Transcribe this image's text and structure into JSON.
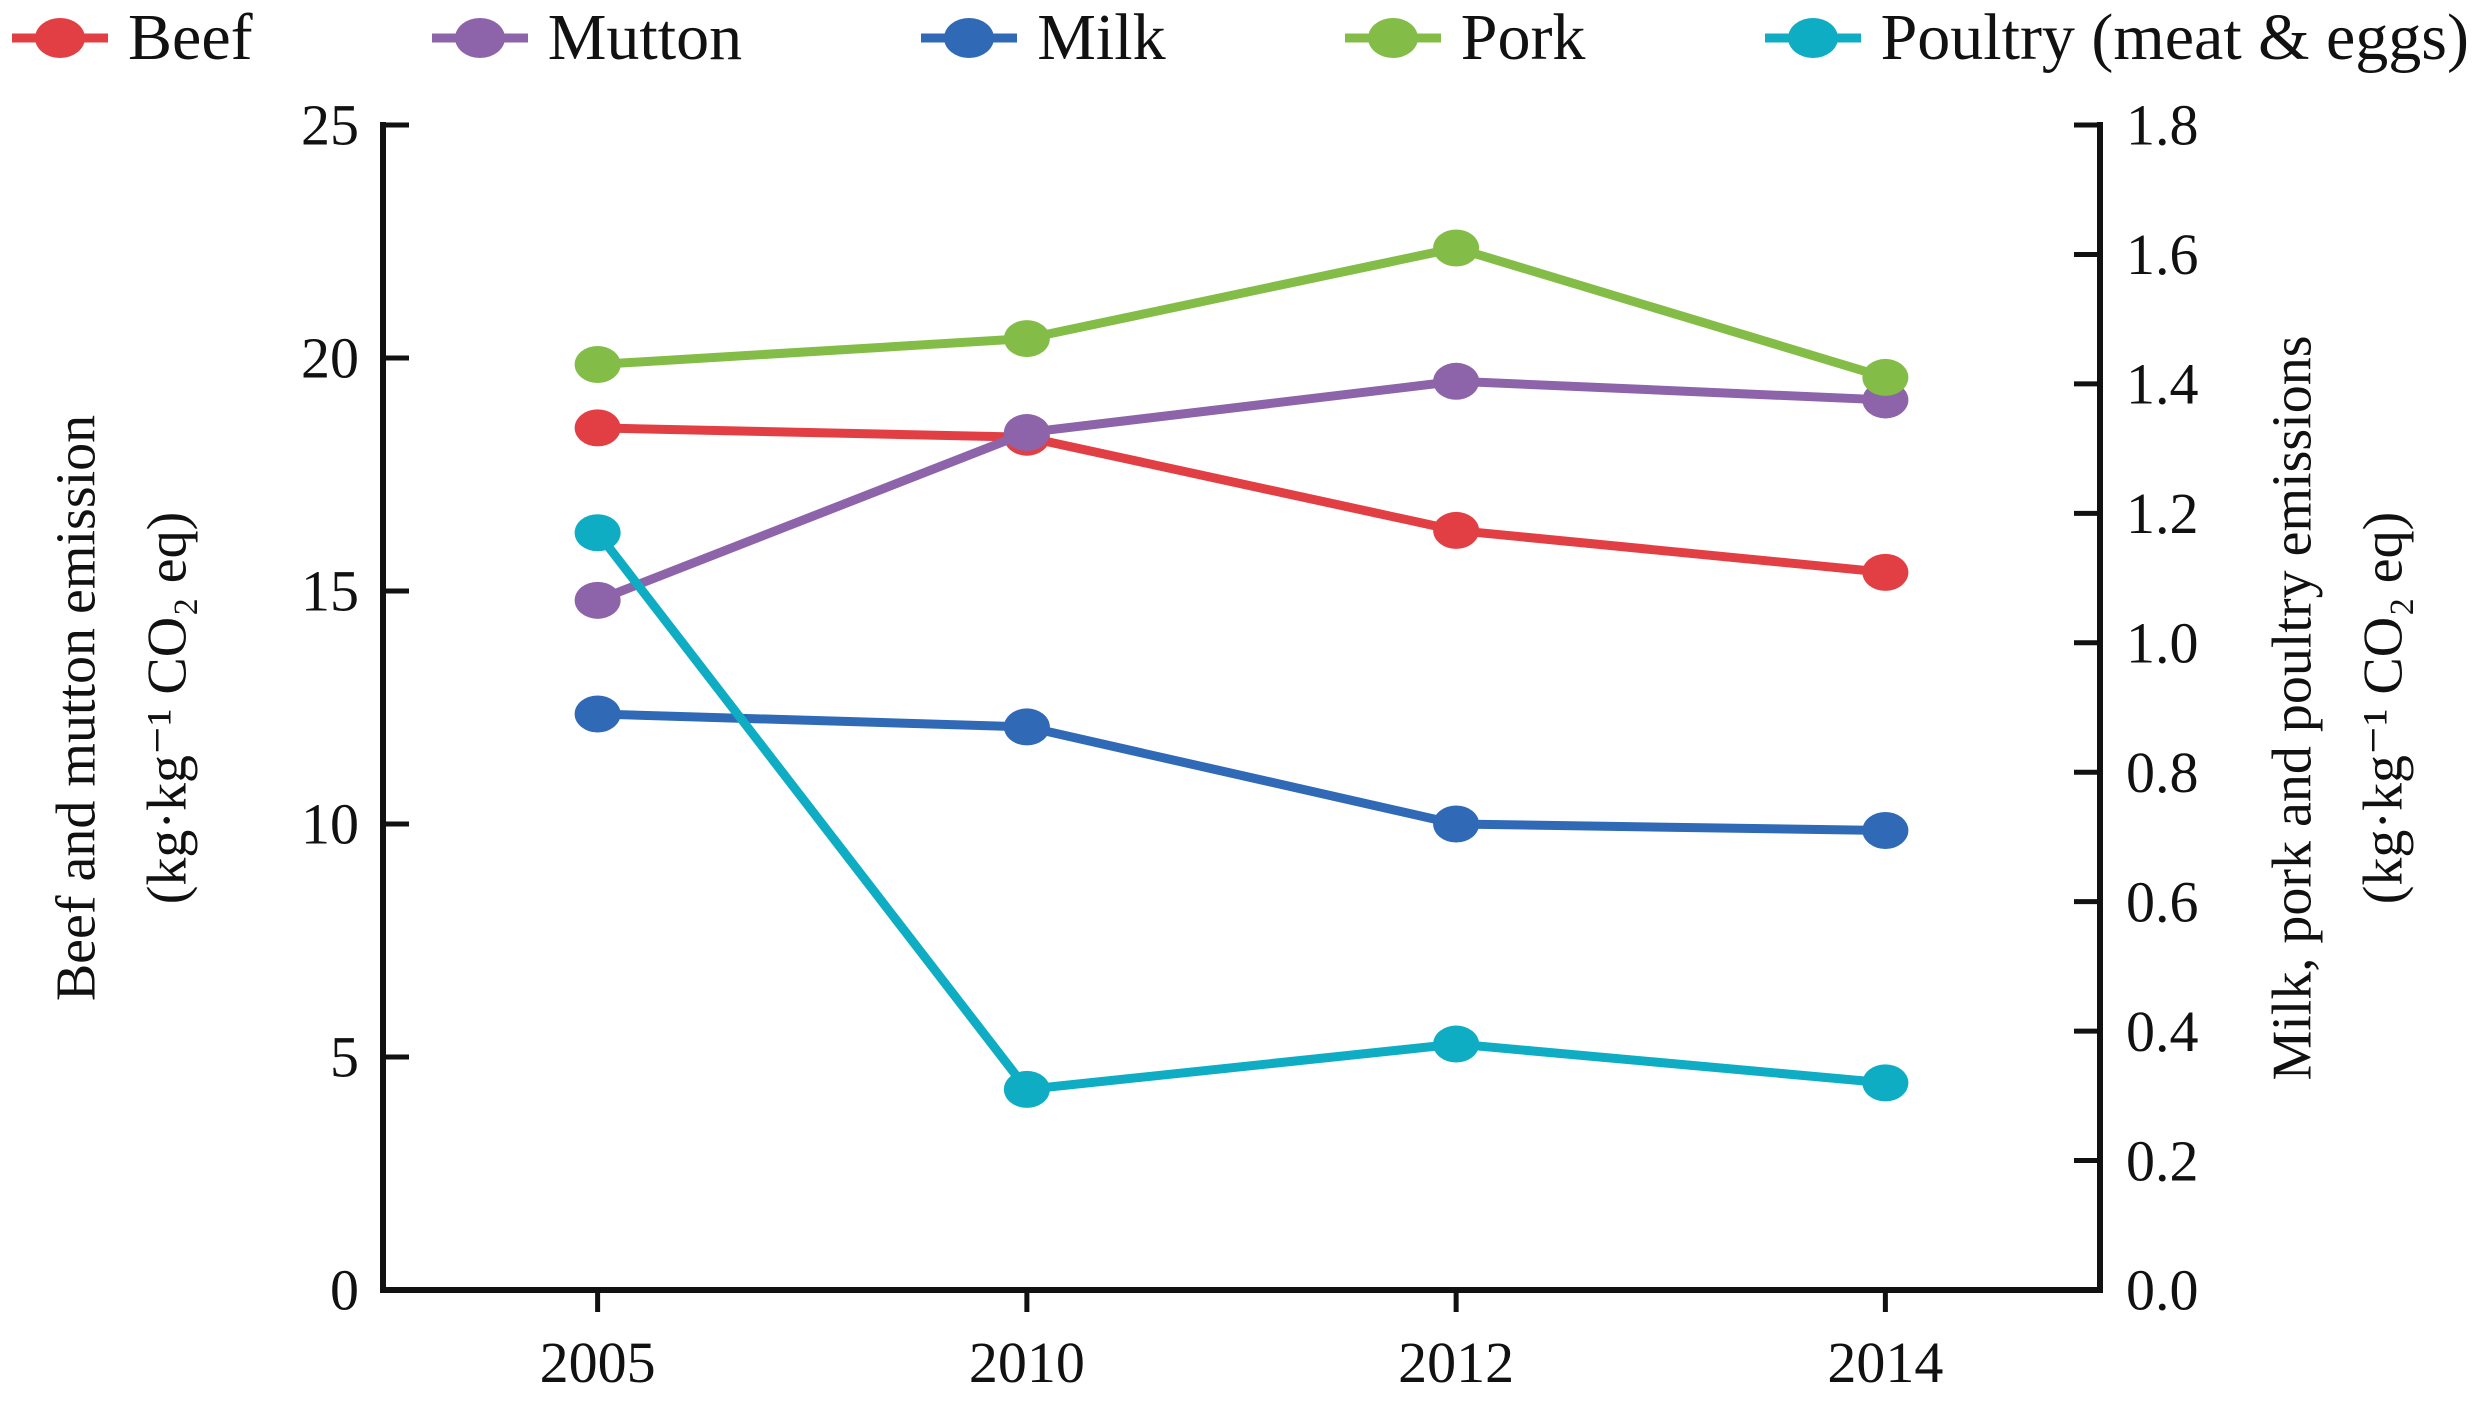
{
  "figure": {
    "background": "#ffffff",
    "axis_color": "#111111"
  },
  "chart_data": {
    "type": "line",
    "title": "",
    "legend_position": "top",
    "grid": false,
    "x_categories": [
      "2005",
      "2010",
      "2012",
      "2014"
    ],
    "left_axis": {
      "label_line1": "Beef and mutton emission",
      "label_line2": "(kg·kg⁻¹ CO₂ eq)",
      "min": 0,
      "max": 25,
      "tick_labels": [
        "0",
        "5",
        "10",
        "15",
        "20",
        "25"
      ]
    },
    "right_axis": {
      "label_line1": "Milk, pork and poultry emissions",
      "label_line2": "(kg·kg⁻¹ CO₂ eq)",
      "min": 0,
      "max": 1.8,
      "tick_labels": [
        "0.0",
        "0.2",
        "0.4",
        "0.6",
        "0.8",
        "1.0",
        "1.2",
        "1.4",
        "1.6",
        "1.8"
      ]
    },
    "series": [
      {
        "name": "Beef",
        "axis": "left",
        "color": "#e23f44",
        "marker": "ellipse",
        "values": [
          18.5,
          18.3,
          16.3,
          15.4
        ]
      },
      {
        "name": "Mutton",
        "axis": "left",
        "color": "#8d63aa",
        "marker": "ellipse",
        "values": [
          14.8,
          18.4,
          19.5,
          19.1
        ]
      },
      {
        "name": "Milk",
        "axis": "right",
        "color": "#3069b5",
        "marker": "ellipse",
        "values": [
          0.89,
          0.87,
          0.72,
          0.71
        ]
      },
      {
        "name": "Pork",
        "axis": "right",
        "color": "#83bd48",
        "marker": "ellipse",
        "values": [
          1.43,
          1.47,
          1.61,
          1.41
        ]
      },
      {
        "name": "Poultry (meat & eggs)",
        "axis": "right",
        "color": "#0fadc4",
        "marker": "ellipse",
        "values": [
          1.17,
          0.31,
          0.38,
          0.32
        ]
      }
    ],
    "legend_order": [
      "Beef",
      "Mutton",
      "Milk",
      "Pork",
      "Poultry (meat & eggs)"
    ],
    "draw_order": [
      "Beef",
      "Mutton",
      "Milk",
      "Poultry (meat & eggs)",
      "Pork"
    ]
  }
}
